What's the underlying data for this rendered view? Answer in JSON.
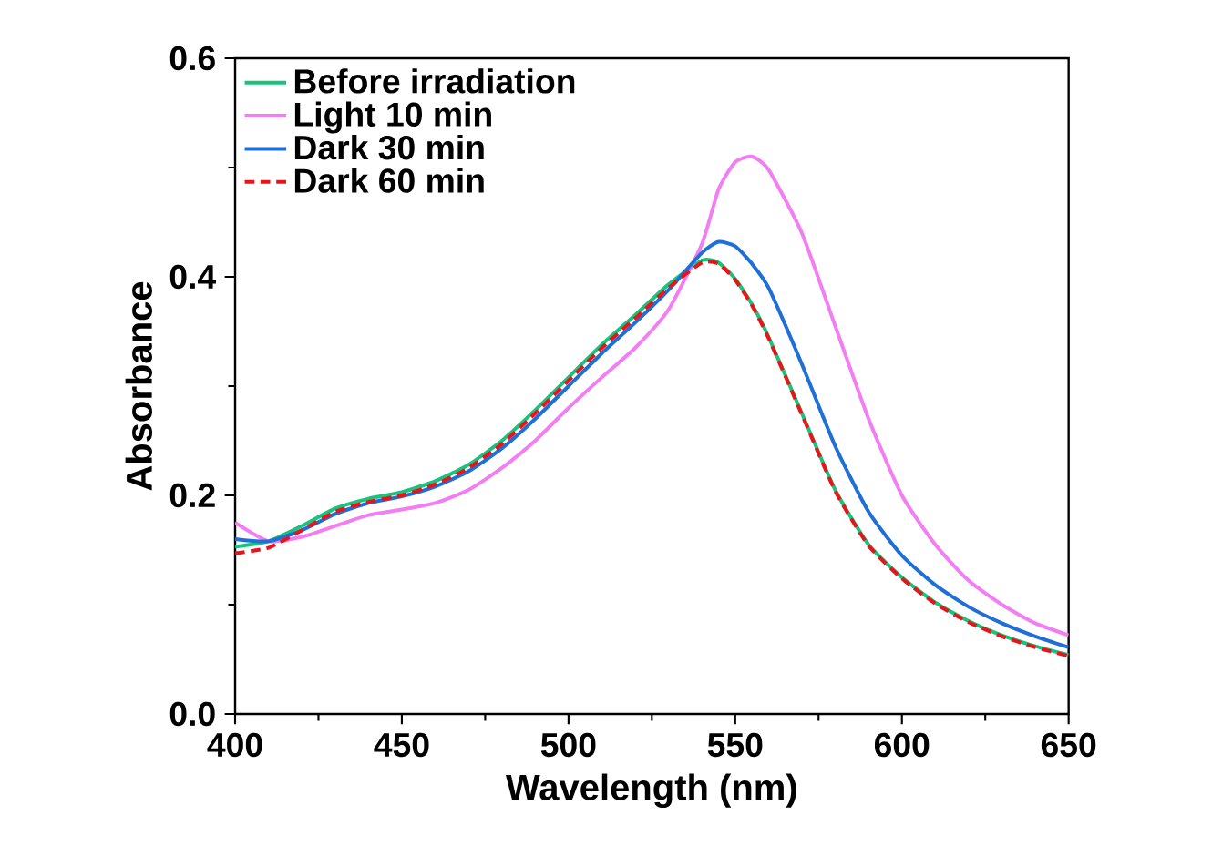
{
  "chart_data": {
    "type": "line",
    "xlabel": "Wavelength (nm)",
    "ylabel": "Absorbance",
    "xlim": [
      400,
      650
    ],
    "ylim": [
      0,
      0.6
    ],
    "xticks": [
      400,
      450,
      500,
      550,
      600,
      650
    ],
    "yticks": [
      {
        "value": 0,
        "label": "0.0"
      },
      0.2,
      0.4,
      0.6
    ],
    "legend": "top left",
    "grid": false,
    "marker": "none",
    "x": [
      400,
      410,
      420,
      430,
      440,
      450,
      460,
      470,
      480,
      490,
      500,
      510,
      520,
      530,
      540,
      545,
      550,
      555,
      560,
      570,
      580,
      590,
      600,
      610,
      620,
      630,
      640,
      650
    ],
    "series": [
      {
        "name": "Before irradiation",
        "color": "#19c37d",
        "line_style": "solid",
        "values": [
          0.153,
          0.158,
          0.172,
          0.188,
          0.197,
          0.203,
          0.213,
          0.228,
          0.25,
          0.278,
          0.308,
          0.338,
          0.365,
          0.393,
          0.415,
          0.413,
          0.398,
          0.375,
          0.345,
          0.275,
          0.205,
          0.155,
          0.125,
          0.102,
          0.085,
          0.072,
          0.062,
          0.054
        ]
      },
      {
        "name": "Light 10 min",
        "color": "#f27ff2",
        "line_style": "solid",
        "values": [
          0.175,
          0.158,
          0.162,
          0.172,
          0.182,
          0.187,
          0.193,
          0.205,
          0.225,
          0.25,
          0.28,
          0.308,
          0.335,
          0.37,
          0.43,
          0.48,
          0.505,
          0.51,
          0.498,
          0.44,
          0.355,
          0.27,
          0.2,
          0.155,
          0.122,
          0.1,
          0.083,
          0.072
        ]
      },
      {
        "name": "Dark 30 min",
        "color": "#1f6fd6",
        "line_style": "solid",
        "values": [
          0.16,
          0.158,
          0.168,
          0.183,
          0.193,
          0.199,
          0.208,
          0.222,
          0.243,
          0.27,
          0.3,
          0.33,
          0.358,
          0.388,
          0.422,
          0.432,
          0.428,
          0.412,
          0.39,
          0.32,
          0.245,
          0.185,
          0.145,
          0.118,
          0.098,
          0.083,
          0.071,
          0.061
        ]
      },
      {
        "name": "Dark 60 min",
        "color": "#e8141a",
        "line_style": "dashed",
        "values": [
          0.147,
          0.152,
          0.168,
          0.185,
          0.194,
          0.2,
          0.21,
          0.225,
          0.247,
          0.275,
          0.305,
          0.335,
          0.362,
          0.39,
          0.413,
          0.412,
          0.397,
          0.374,
          0.344,
          0.274,
          0.204,
          0.154,
          0.124,
          0.101,
          0.084,
          0.071,
          0.061,
          0.053
        ]
      }
    ]
  }
}
